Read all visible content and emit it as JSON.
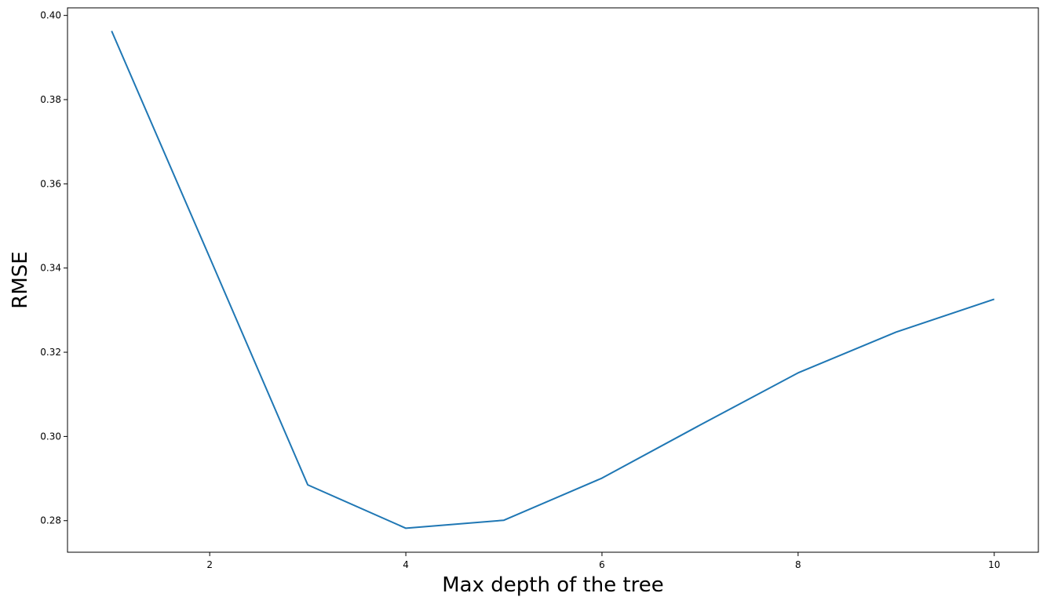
{
  "chart_data": {
    "type": "line",
    "title": "",
    "xlabel": "Max depth of the tree",
    "ylabel": "RMSE",
    "xlim": [
      0.55,
      10.45
    ],
    "ylim": [
      0.2725,
      0.4018
    ],
    "xticks": [
      2,
      4,
      6,
      8,
      10
    ],
    "xtick_labels": [
      "2",
      "4",
      "6",
      "8",
      "10"
    ],
    "yticks": [
      0.28,
      0.3,
      0.32,
      0.34,
      0.36,
      0.38,
      0.4
    ],
    "ytick_labels": [
      "0.28",
      "0.30",
      "0.32",
      "0.34",
      "0.36",
      "0.38",
      "0.40"
    ],
    "grid": false,
    "series": [
      {
        "color": "#1f77b4",
        "x": [
          1,
          2,
          3,
          4,
          5,
          6,
          7,
          8,
          9,
          10
        ],
        "y": [
          0.3963,
          0.3425,
          0.2885,
          0.2782,
          0.2801,
          0.2901,
          0.3027,
          0.3151,
          0.3248,
          0.3326
        ]
      }
    ]
  }
}
